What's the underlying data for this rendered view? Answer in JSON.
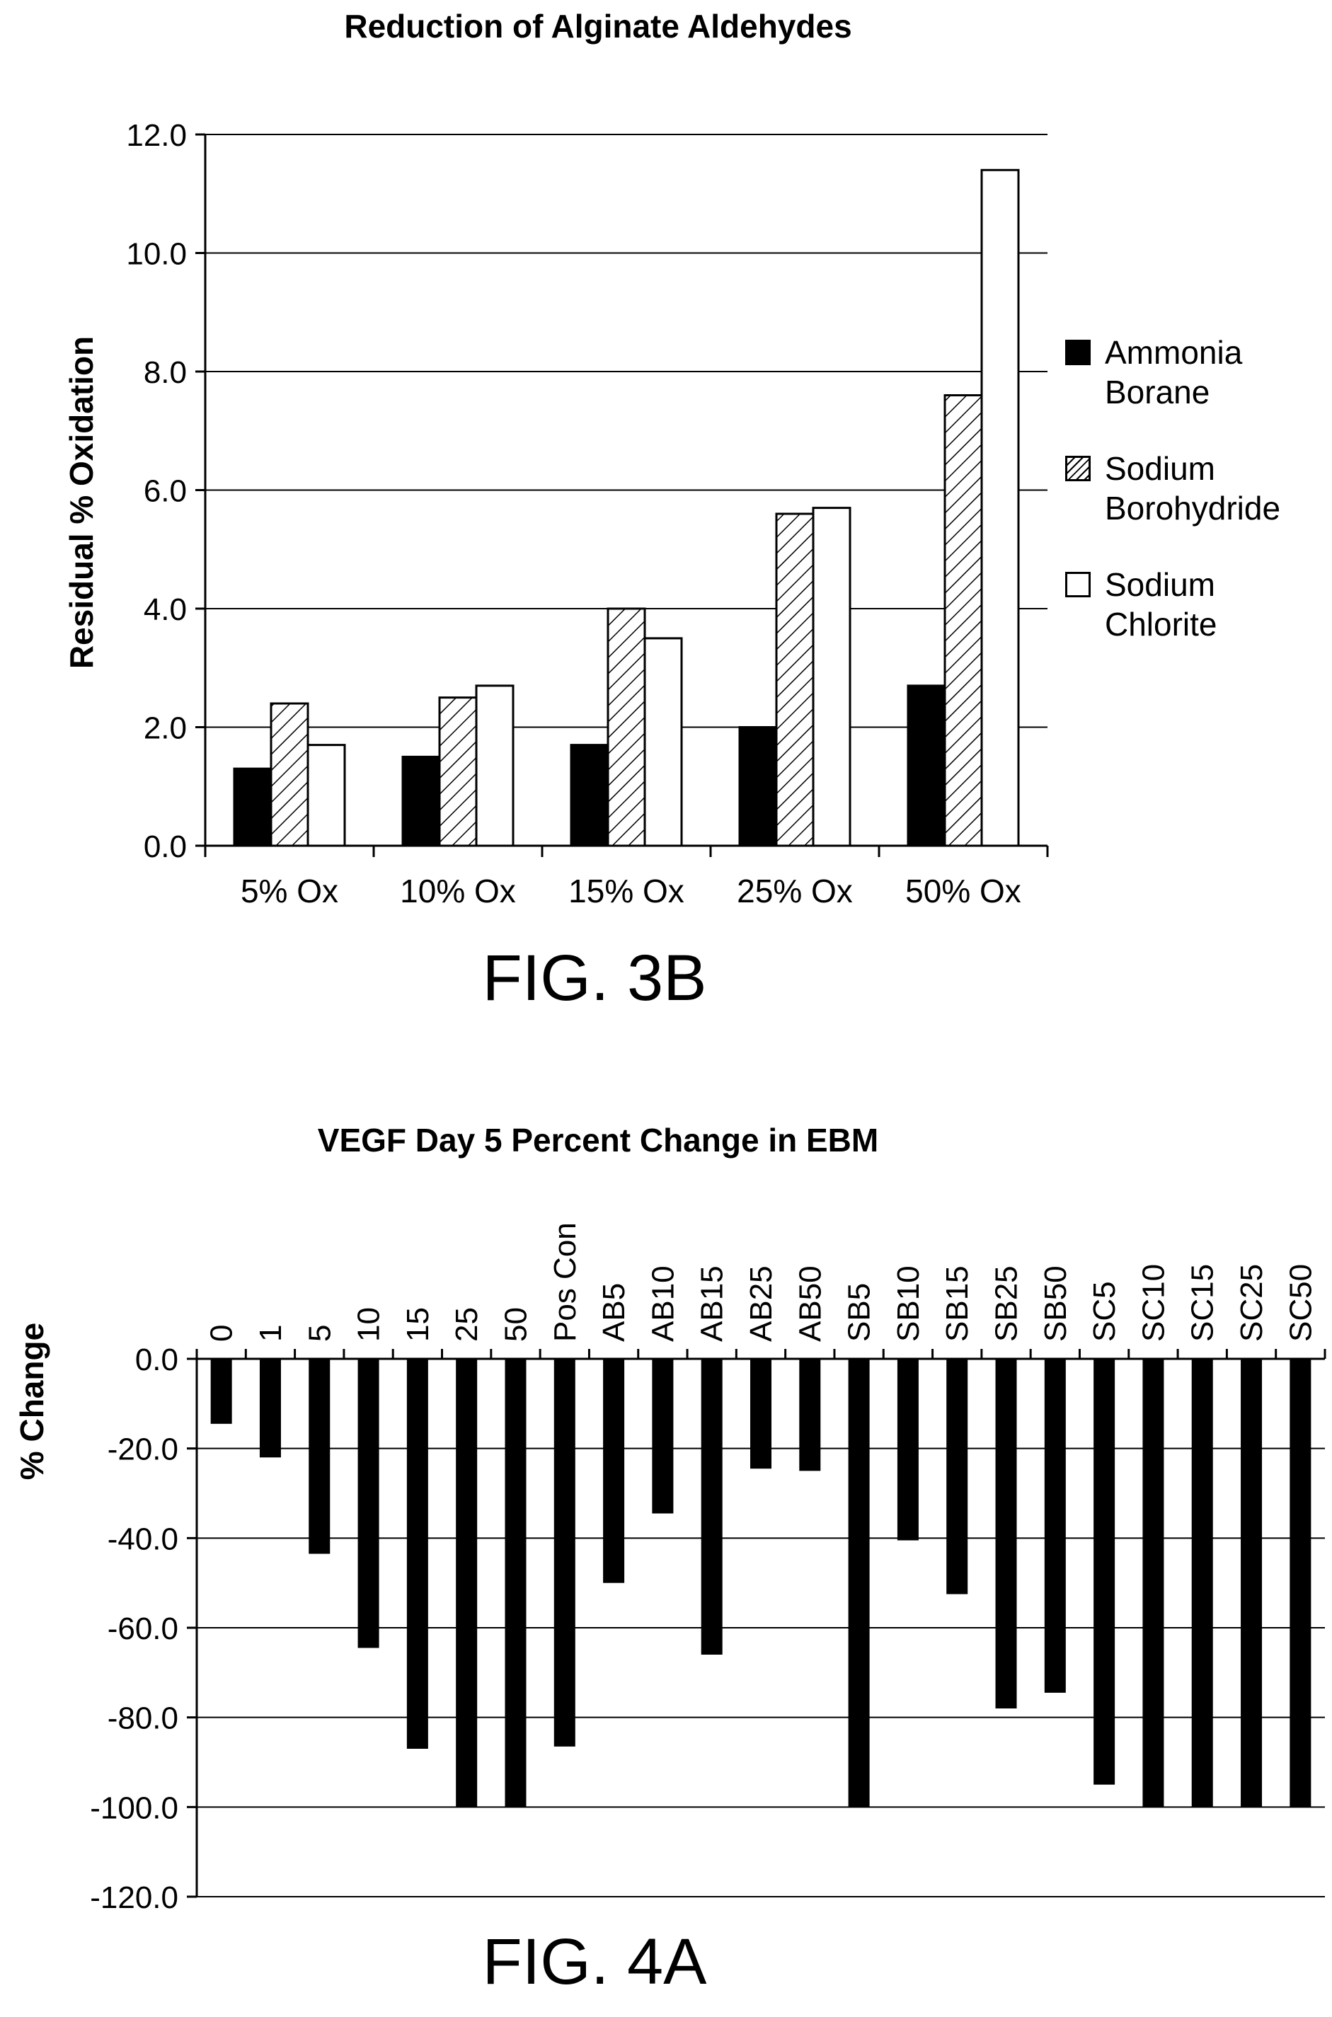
{
  "figures": [
    {
      "caption": "FIG. 3B",
      "chart_data": {
        "type": "bar",
        "title": "Reduction of Alginate Aldehydes",
        "xlabel": "",
        "ylabel": "Residual % Oxidation",
        "ylim": [
          0,
          12
        ],
        "yticks": [
          "0.0",
          "2.0",
          "4.0",
          "6.0",
          "8.0",
          "10.0",
          "12.0"
        ],
        "categories": [
          "5% Ox",
          "10% Ox",
          "15% Ox",
          "25% Ox",
          "50% Ox"
        ],
        "series": [
          {
            "name": "Ammonia Borane",
            "fill": "solid",
            "color": "#000000",
            "values": [
              1.3,
              1.5,
              1.7,
              2.0,
              2.7
            ]
          },
          {
            "name": "Sodium Borohydride",
            "fill": "hatched",
            "color": "#000000",
            "values": [
              2.4,
              2.5,
              4.0,
              5.6,
              7.6
            ]
          },
          {
            "name": "Sodium Chlorite",
            "fill": "white",
            "color": "#ffffff",
            "values": [
              1.7,
              2.7,
              3.5,
              5.7,
              11.4
            ]
          }
        ],
        "legend_position": "right",
        "grid": "horizontal"
      }
    },
    {
      "caption": "FIG. 4A",
      "chart_data": {
        "type": "bar",
        "title": "VEGF Day 5 Percent Change in EBM",
        "xlabel": "",
        "ylabel": "% Change",
        "ylim": [
          -120,
          0
        ],
        "yticks": [
          "0.0",
          "-20.0",
          "-40.0",
          "-60.0",
          "-80.0",
          "-100.0",
          "-120.0"
        ],
        "categories": [
          "0",
          "1",
          "5",
          "10",
          "15",
          "25",
          "50",
          "Pos Con",
          "AB5",
          "AB10",
          "AB15",
          "AB25",
          "AB50",
          "SB5",
          "SB10",
          "SB15",
          "SB25",
          "SB50",
          "SC5",
          "SC10",
          "SC15",
          "SC25",
          "SC50"
        ],
        "series": [
          {
            "values": [
              -14.5,
              -22.0,
              -43.5,
              -64.5,
              -87.0,
              -100.0,
              -100.0,
              -86.5,
              -50.0,
              -34.5,
              -66.0,
              -24.5,
              -25.0,
              -100.0,
              -40.5,
              -52.5,
              -78.0,
              -74.5,
              -95.0,
              -100.0,
              -100.0,
              -100.0,
              -100.0
            ]
          }
        ],
        "grid": "horizontal",
        "color": "#000000"
      }
    }
  ]
}
